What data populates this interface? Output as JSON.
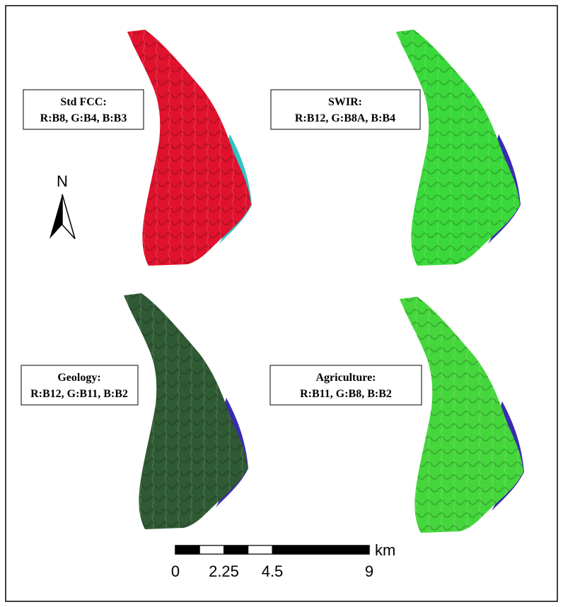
{
  "panels": [
    {
      "title": "Std FCC:",
      "bands": "R:B8, G:B4, B:B3"
    },
    {
      "title": "SWIR:",
      "bands": "R:B12, G:B8A, B:B4"
    },
    {
      "title": "Geology:",
      "bands": "R:B12, G:B11, B:B2"
    },
    {
      "title": "Agriculture:",
      "bands": "R:B11, G:B8, B:B2"
    }
  ],
  "north_arrow": {
    "label": "N"
  },
  "scale_bar": {
    "ticks": [
      0,
      2.25,
      4.5,
      9
    ],
    "unit": "km"
  }
}
